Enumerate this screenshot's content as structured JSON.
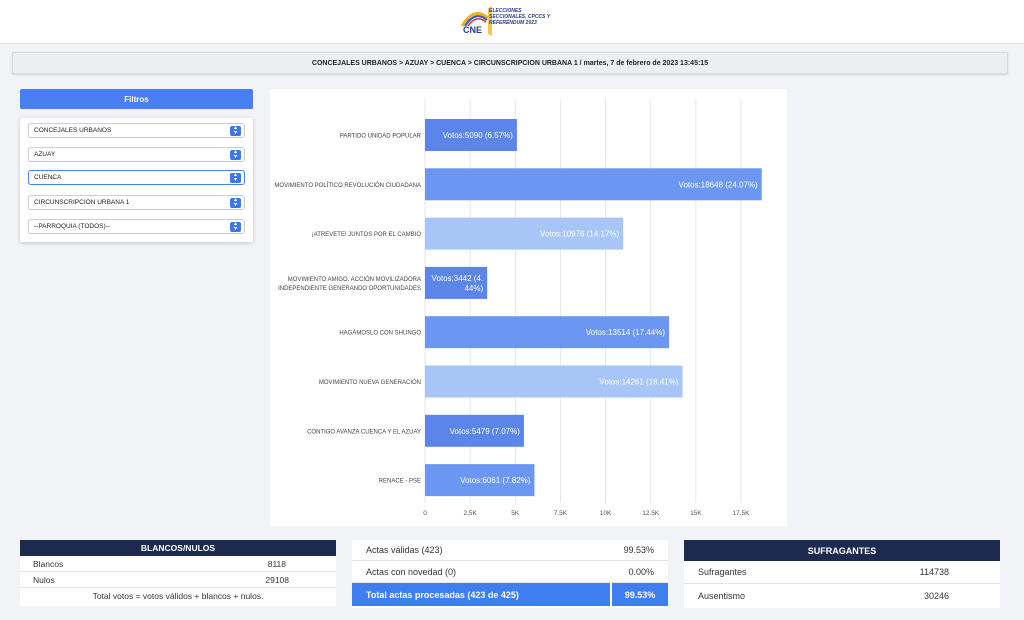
{
  "header": {
    "logo_text": "CNE",
    "logo_subtitle": "ELECCIONES SECCIONALES, CPCCS Y REFERÉNDUM 2023"
  },
  "breadcrumb": "CONCEJALES URBANOS > AZUAY > CUENCA > CIRCUNSCRIPCION URBANA 1 / martes, 7 de febrero de 2023 13:45:15",
  "filters": {
    "title": "Filtros",
    "selects": [
      "CONCEJALES URBANOS",
      "AZUAY",
      "CUENCA",
      "CIRCUNSCRIPCION URBANA 1",
      "--PARROQUIA (TODOS)--"
    ],
    "active_index": 2
  },
  "chart_data": {
    "type": "bar",
    "orientation": "horizontal",
    "categories": [
      [
        "PARTIDO UNIDAD POPULAR"
      ],
      [
        "MOVIMIENTO POLÍTICO REVOLUCIÓN CIUDADANA"
      ],
      [
        "¡ATREVETE! JUNTOS POR EL CAMBIO"
      ],
      [
        "MOVIMIENTO AMIGO, ACCIÓN MOVILIZADORA",
        "INDEPENDIENTE GENERANDO OPORTUNIDADES"
      ],
      [
        "HAGÁMOSLO CON SHUNGO"
      ],
      [
        "MOVIMIENTO NUEVA GENERACIÓN"
      ],
      [
        "CONTIGO AVANZA CUENCA Y EL AZUAY"
      ],
      [
        "RENACE - PSE"
      ]
    ],
    "values": [
      5090,
      18648,
      10976,
      3442,
      13514,
      14261,
      5479,
      6061
    ],
    "labels": [
      [
        "Votos:5090 (6.57%)"
      ],
      [
        "Votos:18648 (24.07%)"
      ],
      [
        "Votos:10976 (14.17%)"
      ],
      [
        "Votos:3442 (4.",
        "44%)"
      ],
      [
        "Votos:13514 (17.44%)"
      ],
      [
        "Votos:14261 (18.41%)"
      ],
      [
        "Votos:5479 (7.07%)"
      ],
      [
        "Votos:6061 (7.82%)"
      ]
    ],
    "colors": [
      "#5b85e8",
      "#6b97f2",
      "#a7c6f7",
      "#5b85e8",
      "#6b97f2",
      "#a7c6f7",
      "#5b85e8",
      "#6b97f2"
    ],
    "x_ticks": [
      0,
      2500,
      5000,
      7500,
      10000,
      12500,
      15000,
      17500
    ],
    "x_tick_labels": [
      "0",
      "2.5K",
      "5K",
      "7.5K",
      "10K",
      "12.5K",
      "15K",
      "17.5K"
    ],
    "xlim": [
      0,
      17500
    ],
    "grid": true
  },
  "blancos_nulos": {
    "title": "BLANCOS/NULOS",
    "rows": [
      {
        "label": "Blancos",
        "value": "8118"
      },
      {
        "label": "Nulos",
        "value": "29108"
      }
    ],
    "note": "Total votos = votos válidos + blancos + nulos."
  },
  "actas": {
    "rows": [
      {
        "label": "Actas válidas (423)",
        "value": "99.53%"
      },
      {
        "label": "Actas con novedad (0)",
        "value": "0.00%"
      }
    ],
    "total_label": "Total actas procesadas (423 de 425)",
    "total_value": "99.53%"
  },
  "sufragantes": {
    "title": "SUFRAGANTES",
    "rows": [
      {
        "label": "Sufragantes",
        "value": "114738"
      },
      {
        "label": "Ausentismo",
        "value": "30246"
      }
    ]
  }
}
